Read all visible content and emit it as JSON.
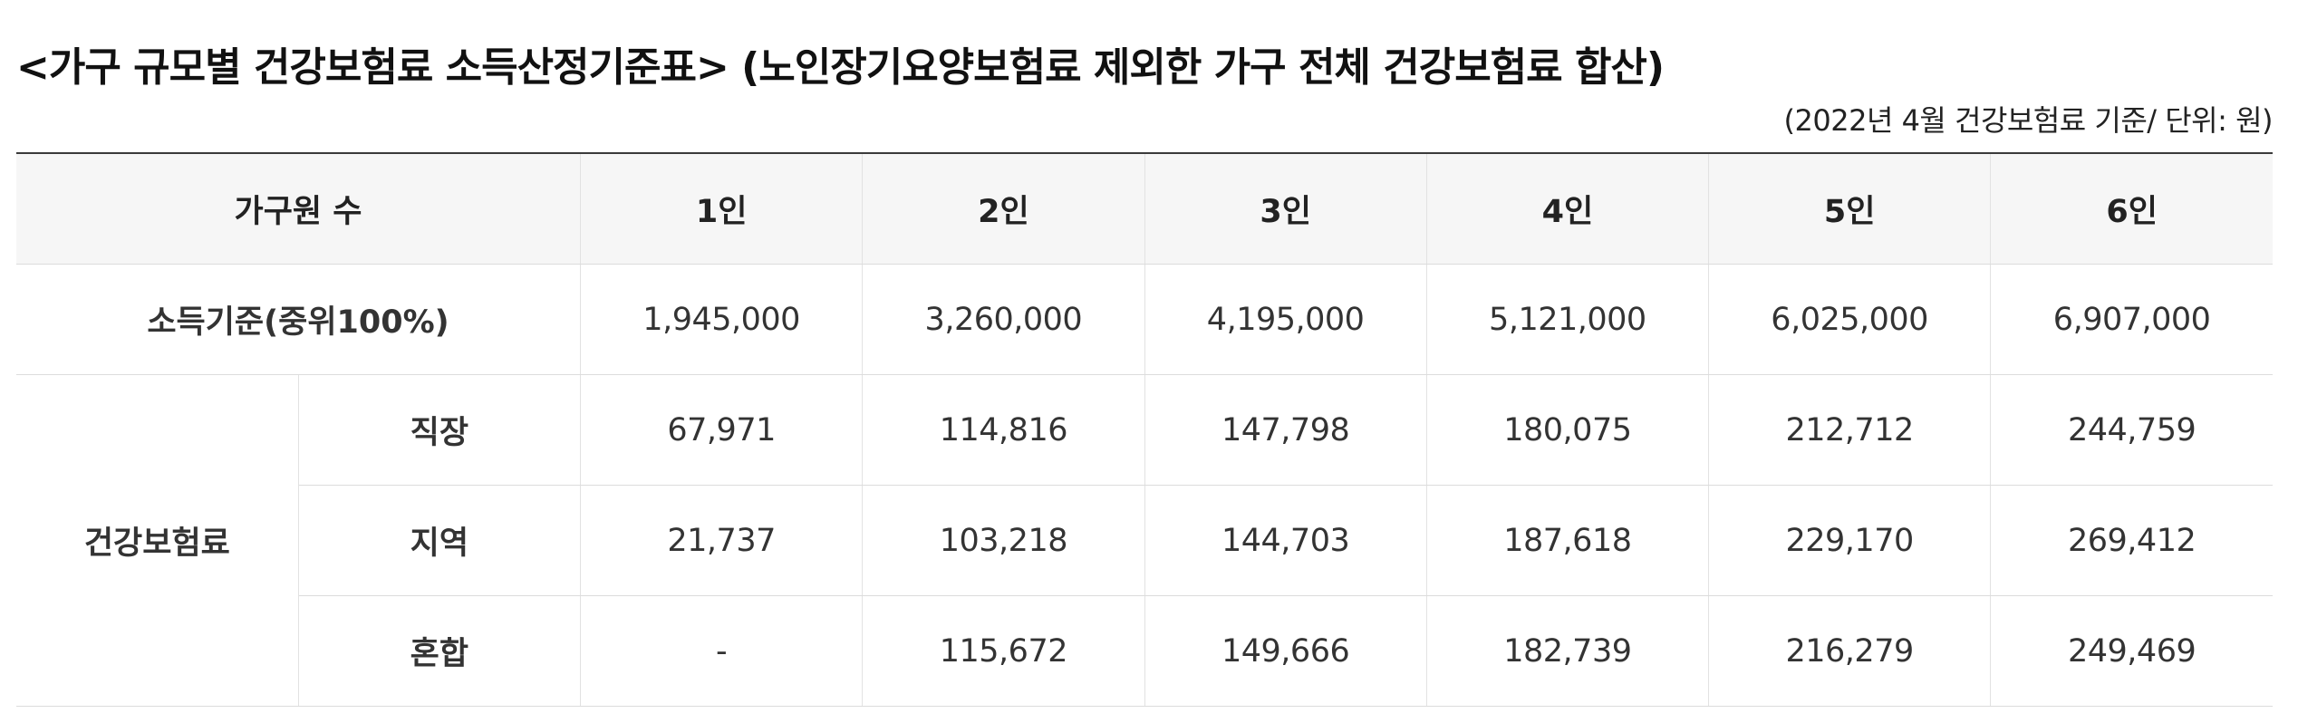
{
  "title": "<가구 규모별 건강보험료 소득산정기준표> (노인장기요양보험료 제외한 가구 전체 건강보험료 합산)",
  "unit_note": "(2022년 4월 건강보험료 기준/ 단위: 원)",
  "table": {
    "header": {
      "first": "가구원 수",
      "columns": [
        "1인",
        "2인",
        "3인",
        "4인",
        "5인",
        "6인"
      ]
    },
    "income_row": {
      "label": "소득기준(중위100%)",
      "values": [
        "1,945,000",
        "3,260,000",
        "4,195,000",
        "5,121,000",
        "6,025,000",
        "6,907,000"
      ]
    },
    "insurance_group_label": "건강보험료",
    "insurance_rows": [
      {
        "label": "직장",
        "values": [
          "67,971",
          "114,816",
          "147,798",
          "180,075",
          "212,712",
          "244,759"
        ]
      },
      {
        "label": "지역",
        "values": [
          "21,737",
          "103,218",
          "144,703",
          "187,618",
          "229,170",
          "269,412"
        ]
      },
      {
        "label": "혼합",
        "values": [
          "-",
          "115,672",
          "149,666",
          "182,739",
          "216,279",
          "249,469"
        ]
      }
    ]
  }
}
